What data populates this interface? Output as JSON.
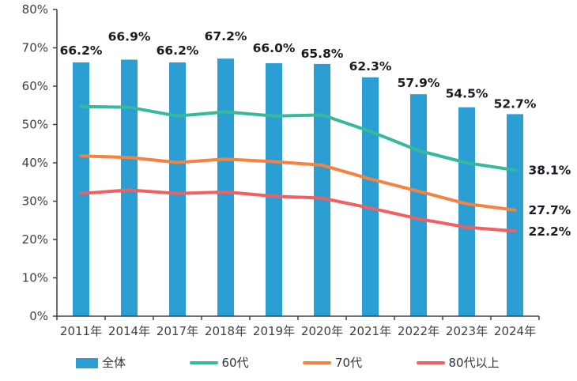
{
  "chart_data": {
    "type": "bar",
    "subtype": "bar+line combo",
    "title": "",
    "categories": [
      "2011年",
      "2014年",
      "2017年",
      "2018年",
      "2019年",
      "2020年",
      "2021年",
      "2022年",
      "2023年",
      "2024年"
    ],
    "bar_series": {
      "name": "全体",
      "color": "#2B9FD3",
      "values": [
        66.2,
        66.9,
        66.2,
        67.2,
        66.0,
        65.8,
        62.3,
        57.9,
        54.5,
        52.7
      ],
      "point_labels": [
        "66.2%",
        "66.9%",
        "66.2%",
        "67.2%",
        "66.0%",
        "65.8%",
        "62.3%",
        "57.9%",
        "54.5%",
        "52.7%"
      ]
    },
    "line_series": [
      {
        "name": "60代",
        "color": "#36BA9B",
        "values": [
          54.7,
          54.5,
          52.2,
          53.3,
          52.2,
          52.5,
          48.2,
          43.2,
          40.0,
          38.1
        ],
        "end_label": "38.1%"
      },
      {
        "name": "70代",
        "color": "#F58240",
        "values": [
          41.8,
          41.4,
          40.1,
          41.0,
          40.3,
          39.4,
          35.8,
          32.6,
          29.3,
          27.7
        ],
        "end_label": "27.7%"
      },
      {
        "name": "80代以上",
        "color": "#F16060",
        "values": [
          32.0,
          32.9,
          32.0,
          32.4,
          31.3,
          30.8,
          28.2,
          25.4,
          23.2,
          22.2
        ],
        "end_label": "22.2%"
      }
    ],
    "y_axis": {
      "min": 0,
      "max": 80,
      "step": 10,
      "tick_labels": [
        "0%",
        "10%",
        "20%",
        "30%",
        "40%",
        "50%",
        "60%",
        "70%",
        "80%"
      ]
    },
    "xlabel": "",
    "ylabel": "",
    "grid": false,
    "legend_position": "bottom",
    "bar_label_offsets": [
      10,
      24,
      10,
      23,
      14,
      8,
      9,
      9,
      12,
      8
    ],
    "axis_color": "#404040",
    "tick_text_color": "#404040",
    "data_label_color": "#1A1A24"
  }
}
